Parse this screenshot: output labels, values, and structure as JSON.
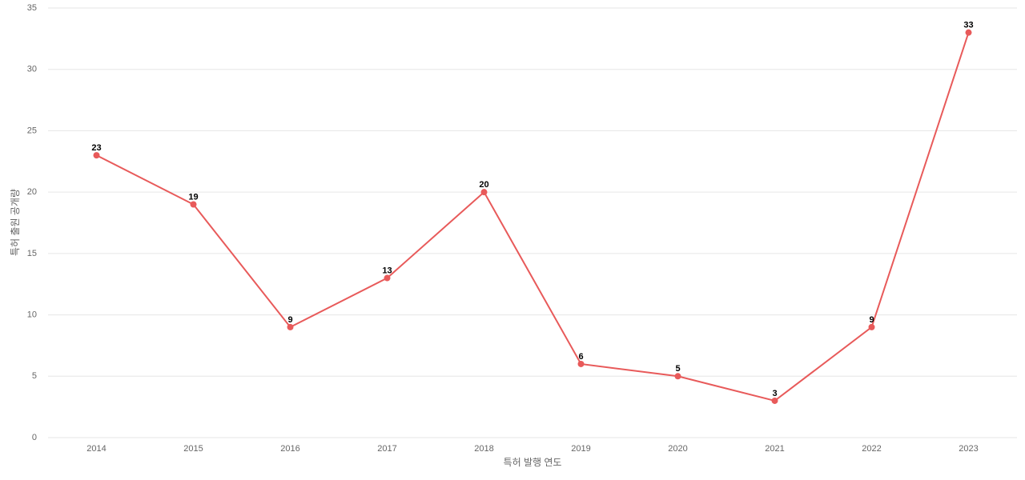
{
  "chart_data": {
    "type": "line",
    "x_label": "특허 발행 연도",
    "y_label": "특허 출원 공개량",
    "categories": [
      "2014",
      "2015",
      "2016",
      "2017",
      "2018",
      "2019",
      "2020",
      "2021",
      "2022",
      "2023"
    ],
    "series": [
      {
        "name": "특허 출원 공개량",
        "color": "#e85a5a",
        "values": [
          23,
          19,
          9,
          13,
          20,
          6,
          5,
          3,
          9,
          33
        ]
      }
    ],
    "ylim": [
      0,
      35
    ],
    "yticks": [
      0,
      5,
      10,
      15,
      20,
      25,
      30,
      35
    ],
    "grid": true
  }
}
